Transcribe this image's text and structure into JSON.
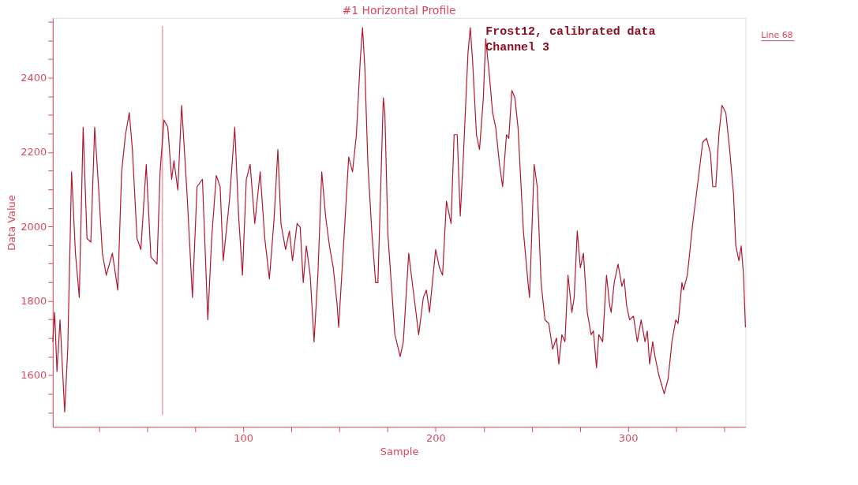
{
  "chart_data": {
    "type": "line",
    "title": "#1 Horizontal Profile",
    "xlabel": "Sample",
    "ylabel": "Data Value",
    "annotations": [
      "Frost12, calibrated data",
      "Channel 3",
      "Line 68"
    ],
    "x": [
      1,
      2,
      3.2,
      4.8,
      7.2,
      8.8,
      10.8,
      12.8,
      14.8,
      16.8,
      18.8,
      20.8,
      22.8,
      24.8,
      26.8,
      28.8,
      32,
      34.8,
      36.8,
      38.8,
      40.8,
      42.4,
      44.8,
      46.8,
      49.6,
      52,
      55.2,
      56.8,
      58.8,
      60.8,
      62.8,
      64,
      66,
      68,
      70.8,
      73.6,
      76,
      78.8,
      81.6,
      83.6,
      86,
      88,
      89.6,
      92.8,
      95.6,
      97.6,
      99.6,
      101.6,
      103.6,
      106,
      108.8,
      111.2,
      113.6,
      116,
      118,
      119.6,
      122,
      124,
      125.6,
      128,
      129.6,
      131.2,
      132.8,
      134.8,
      136.8,
      138.8,
      140.8,
      142.8,
      144.8,
      146.8,
      148.8,
      149.6,
      152.8,
      154.8,
      156.8,
      158.8,
      160.8,
      162,
      163.2,
      164.8,
      166.8,
      168.8,
      170,
      172.8,
      173.6,
      175.2,
      178.8,
      181.6,
      183.2,
      186,
      188.8,
      191.2,
      193.6,
      195.2,
      196.8,
      200,
      202,
      203.6,
      205.6,
      208,
      209.6,
      211.2,
      212.8,
      214.4,
      216.8,
      218,
      219.2,
      221.2,
      222.8,
      224.8,
      226,
      227.6,
      229.6,
      231.2,
      233.2,
      234.8,
      236.8,
      238,
      239.6,
      241.2,
      242.8,
      245.6,
      248,
      248.8,
      251.2,
      252.8,
      254.8,
      256.8,
      258.8,
      260.8,
      262.8,
      264,
      265.6,
      267.2,
      268.8,
      270.8,
      272,
      273.6,
      275.2,
      276.8,
      278.8,
      280.8,
      282,
      283.6,
      284.8,
      286.8,
      288.8,
      290.4,
      291.2,
      292.8,
      294.8,
      296.8,
      298,
      299.2,
      300.8,
      302.8,
      304.8,
      306.8,
      308.8,
      310,
      311.2,
      312.8,
      314,
      316,
      318.8,
      320.8,
      322.8,
      324.8,
      326,
      328,
      328.8,
      330.8,
      333.6,
      336,
      338.8,
      340.8,
      342.8,
      344,
      345.6,
      347.2,
      348.8,
      350.8,
      352.8,
      354.8,
      356,
      357.6,
      358.8,
      360,
      361
    ],
    "series": [
      {
        "color": "#b0182e",
        "values": [
          1690,
          1769,
          1610,
          1749,
          1501,
          1670,
          2147,
          1928,
          1809,
          2267,
          1968,
          1958,
          2267,
          2107,
          1928,
          1869,
          1928,
          1829,
          2147,
          2247,
          2306,
          2207,
          1968,
          1938,
          2167,
          1918,
          1899,
          2147,
          2287,
          2267,
          2127,
          2177,
          2098,
          2326,
          2088,
          1809,
          2107,
          2127,
          1749,
          1968,
          2137,
          2107,
          1908,
          2068,
          2267,
          2028,
          1869,
          2127,
          2167,
          2008,
          2147,
          1968,
          1859,
          2018,
          2207,
          2008,
          1938,
          1988,
          1908,
          2008,
          1998,
          1849,
          1948,
          1869,
          1690,
          1869,
          2147,
          2028,
          1948,
          1889,
          1789,
          1729,
          2008,
          2187,
          2147,
          2247,
          2446,
          2535,
          2426,
          2167,
          1988,
          1849,
          1849,
          2346,
          2306,
          1978,
          1709,
          1650,
          1690,
          1928,
          1809,
          1709,
          1809,
          1829,
          1769,
          1938,
          1889,
          1869,
          2068,
          2008,
          2247,
          2247,
          2028,
          2187,
          2466,
          2535,
          2446,
          2247,
          2207,
          2346,
          2505,
          2426,
          2306,
          2267,
          2167,
          2107,
          2247,
          2237,
          2366,
          2346,
          2267,
          1988,
          1849,
          1809,
          2167,
          2107,
          1849,
          1749,
          1739,
          1670,
          1700,
          1630,
          1709,
          1690,
          1869,
          1769,
          1809,
          1988,
          1889,
          1928,
          1769,
          1709,
          1719,
          1620,
          1709,
          1690,
          1869,
          1789,
          1769,
          1849,
          1899,
          1839,
          1859,
          1789,
          1749,
          1759,
          1690,
          1749,
          1690,
          1719,
          1630,
          1690,
          1650,
          1600,
          1550,
          1590,
          1690,
          1749,
          1739,
          1849,
          1829,
          1869,
          2008,
          2107,
          2227,
          2237,
          2197,
          2107,
          2107,
          2247,
          2326,
          2306,
          2207,
          2088,
          1948,
          1908,
          1948,
          1869,
          1729
        ]
      }
    ],
    "xlim": [
      1,
      361
    ],
    "xticks": [
      {
        "value": 25,
        "label": null
      },
      {
        "value": 50,
        "label": null
      },
      {
        "value": 75,
        "label": null
      },
      100,
      {
        "value": 125,
        "label": null
      },
      {
        "value": 150,
        "label": null
      },
      {
        "value": 175,
        "label": null
      },
      200,
      {
        "value": 225,
        "label": null
      },
      {
        "value": 250,
        "label": null
      },
      {
        "value": 275,
        "label": null
      },
      300,
      {
        "value": 325,
        "label": null
      },
      {
        "value": 350,
        "label": null
      }
    ],
    "ylim": [
      1461,
      2561
    ],
    "yticks": [
      {
        "value": 1500,
        "label": null
      },
      {
        "value": 1550,
        "label": null
      },
      1600,
      {
        "value": 1650,
        "label": null
      },
      {
        "value": 1700,
        "label": null
      },
      {
        "value": 1750,
        "label": null
      },
      1800,
      {
        "value": 1850,
        "label": null
      },
      {
        "value": 1900,
        "label": null
      },
      {
        "value": 1950,
        "label": null
      },
      2000,
      {
        "value": 2050,
        "label": null
      },
      {
        "value": 2100,
        "label": null
      },
      {
        "value": 2150,
        "label": null
      },
      2200,
      {
        "value": 2250,
        "label": null
      },
      {
        "value": 2300,
        "label": null
      },
      {
        "value": 2350,
        "label": null
      },
      2400,
      {
        "value": 2450,
        "label": null
      },
      {
        "value": 2500,
        "label": null
      },
      {
        "value": 2550,
        "label": null
      }
    ],
    "ref_lines": [
      {
        "axis": "x",
        "value": 58,
        "color": "#f4a0a8"
      }
    ],
    "grid": false,
    "marker": "none",
    "line_style": "solid"
  }
}
